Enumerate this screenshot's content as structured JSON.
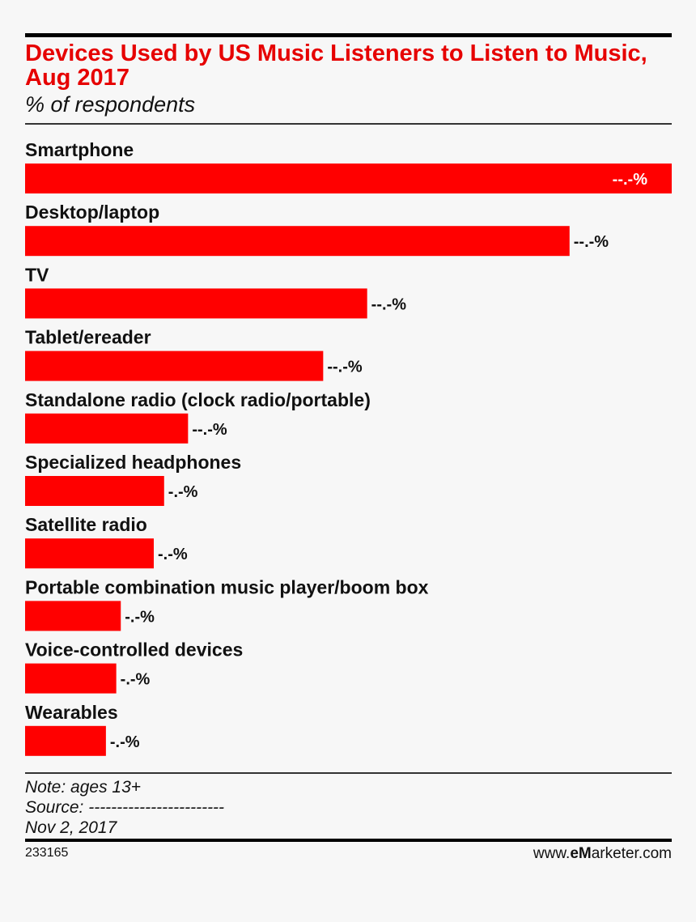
{
  "title": "Devices Used by US Music Listeners to Listen to Music, Aug 2017",
  "subtitle": "% of respondents",
  "note": "Note: ages 13+",
  "source": "Source: ------------------------",
  "date": "Nov 2, 2017",
  "chart_id": "233165",
  "brand": {
    "prefix": "www.",
    "bold": "eM",
    "rest": "arketer.com"
  },
  "colors": {
    "bar": "#ff0000",
    "title": "#e60000"
  },
  "chart_data": {
    "type": "bar",
    "orientation": "horizontal",
    "categories": [
      "Smartphone",
      "Desktop/laptop",
      "TV",
      "Tablet/ereader",
      "Standalone radio (clock radio/portable)",
      "Specialized headphones",
      "Satellite radio",
      "Portable combination music player/boom box",
      "Voice-controlled devices",
      "Wearables"
    ],
    "values": [
      100,
      84.2,
      52.9,
      46.1,
      25.2,
      21.5,
      19.9,
      14.8,
      14.1,
      12.5
    ],
    "value_labels": [
      "--.-%",
      "--.-%",
      "--.-%",
      "--.-%",
      "--.-%",
      "-.-%",
      "-.-%",
      "-.-%",
      "-.-%",
      "-.-%"
    ],
    "xlim": [
      0,
      100
    ],
    "grid": false,
    "legend": "none"
  }
}
